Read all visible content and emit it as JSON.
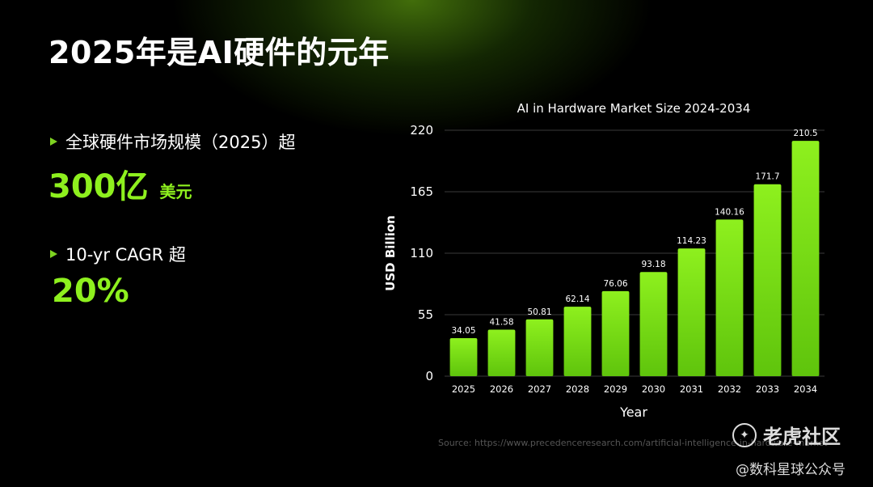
{
  "page": {
    "title": "2025年是AI硬件的元年"
  },
  "stats": [
    {
      "label": "全球硬件市场规模（2025）超",
      "value": "300亿",
      "unit": "美元"
    },
    {
      "label": "10-yr CAGR 超",
      "value": "20%",
      "unit": ""
    }
  ],
  "chart_data": {
    "type": "bar",
    "title": "AI in Hardware Market Size 2024-2034",
    "xlabel": "Year",
    "ylabel": "USD Billion",
    "categories": [
      "2025",
      "2026",
      "2027",
      "2028",
      "2029",
      "2030",
      "2031",
      "2032",
      "2033",
      "2034"
    ],
    "values": [
      34.05,
      41.58,
      50.81,
      62.14,
      76.06,
      93.18,
      114.23,
      140.16,
      171.7,
      210.5
    ],
    "data_labels": [
      "34.05",
      "41.58",
      "50.81",
      "62.14",
      "76.06",
      "93.18",
      "114.23",
      "140.16",
      "171.7",
      "210.5"
    ],
    "ylim": [
      0,
      220
    ],
    "yticks": [
      0,
      55,
      110,
      165,
      220
    ],
    "grid": true,
    "legend": "none",
    "bar_color_top": "#8ef01e",
    "bar_color_bottom": "#5fc40c"
  },
  "footer": {
    "source": "Source: https://www.precedenceresearch.com/artificial-intelligence-in-hardware-market"
  },
  "watermark": {
    "brand": "老虎社区",
    "brand_icon": "tiger-logo-icon",
    "account": "@数科星球公众号"
  }
}
